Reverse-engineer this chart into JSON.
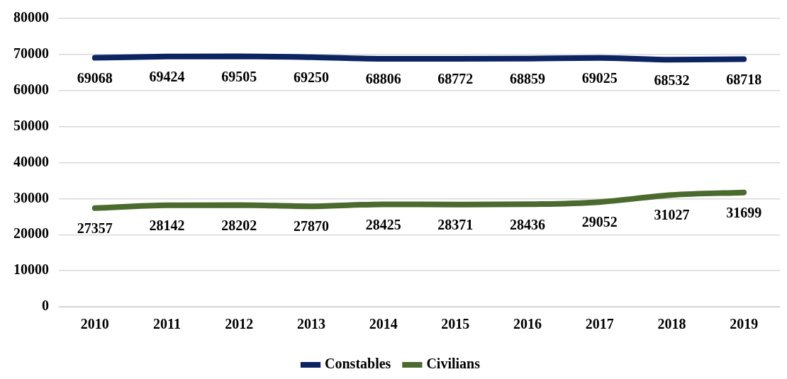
{
  "chart_data": {
    "type": "line",
    "categories": [
      "2010",
      "2011",
      "2012",
      "2013",
      "2014",
      "2015",
      "2016",
      "2017",
      "2018",
      "2019"
    ],
    "series": [
      {
        "name": "Constables",
        "color": "#0c2461",
        "values": [
          69068,
          69424,
          69505,
          69250,
          68806,
          68772,
          68859,
          69025,
          68532,
          68718
        ]
      },
      {
        "name": "Civilians",
        "color": "#4b6a2e",
        "values": [
          27357,
          28142,
          28202,
          27870,
          28425,
          28371,
          28436,
          29052,
          31027,
          31699
        ]
      }
    ],
    "ylim": [
      0,
      80000
    ],
    "yticks": [
      0,
      10000,
      20000,
      30000,
      40000,
      50000,
      60000,
      70000,
      80000
    ],
    "grid": "y",
    "legend": "bottom",
    "data_labels": true,
    "marker": "none",
    "line_style": "solid"
  }
}
